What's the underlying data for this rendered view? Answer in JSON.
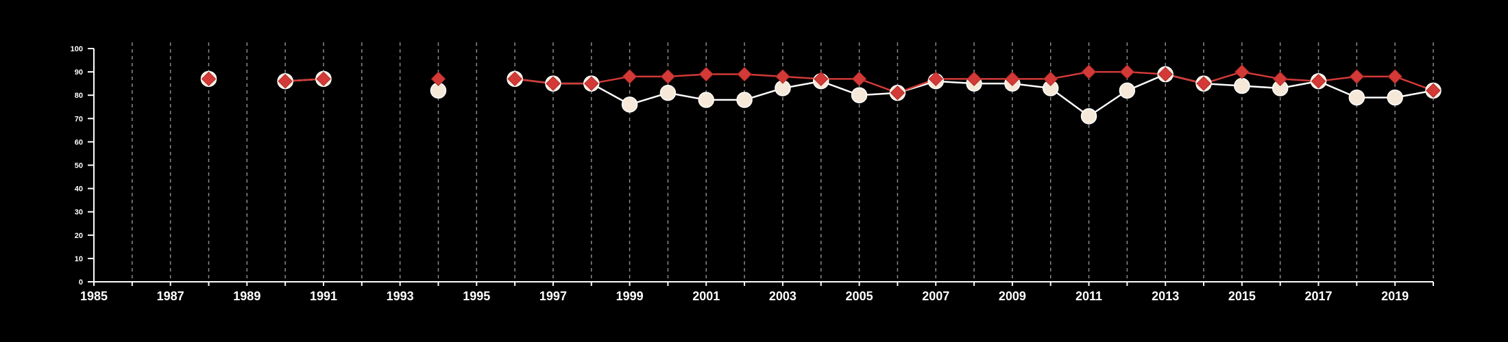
{
  "chart_data": {
    "type": "line",
    "title": "",
    "xlabel": "",
    "ylabel": "",
    "xlim": [
      1985,
      2020
    ],
    "ylim": [
      0,
      100
    ],
    "x_tick_labels": [
      "1985",
      "1987",
      "1989",
      "1991",
      "1993",
      "1995",
      "1997",
      "1999",
      "2001",
      "2003",
      "2005",
      "2007",
      "2009",
      "2011",
      "2013",
      "2015",
      "2017",
      "2019"
    ],
    "y_tick_labels": [
      "0",
      "10",
      "20",
      "30",
      "40",
      "50",
      "60",
      "70",
      "80",
      "90",
      "100"
    ],
    "vertical_dashed_grid": true,
    "background_color": "#000000",
    "series": [
      {
        "marker": "circle",
        "color": "#f6e8d8",
        "line_color": "#ffffff",
        "points": [
          [
            1988,
            87
          ],
          [
            1990,
            86
          ],
          [
            1991,
            87
          ],
          [
            1994,
            82
          ],
          [
            1996,
            87
          ],
          [
            1997,
            85
          ],
          [
            1998,
            85
          ],
          [
            1999,
            76
          ],
          [
            2000,
            81
          ],
          [
            2001,
            78
          ],
          [
            2002,
            78
          ],
          [
            2003,
            83
          ],
          [
            2004,
            86
          ],
          [
            2005,
            80
          ],
          [
            2006,
            81
          ],
          [
            2007,
            86
          ],
          [
            2008,
            85
          ],
          [
            2009,
            85
          ],
          [
            2010,
            83
          ],
          [
            2011,
            71
          ],
          [
            2012,
            82
          ],
          [
            2013,
            89
          ],
          [
            2014,
            85
          ],
          [
            2015,
            84
          ],
          [
            2016,
            83
          ],
          [
            2017,
            86
          ],
          [
            2018,
            79
          ],
          [
            2019,
            79
          ],
          [
            2020,
            82
          ]
        ]
      },
      {
        "marker": "diamond",
        "color": "#d33a37",
        "line_color": "#d33a37",
        "points": [
          [
            1988,
            87
          ],
          [
            1990,
            86
          ],
          [
            1991,
            87
          ],
          [
            1994,
            87
          ],
          [
            1996,
            87
          ],
          [
            1997,
            85
          ],
          [
            1998,
            85
          ],
          [
            1999,
            88
          ],
          [
            2000,
            88
          ],
          [
            2001,
            89
          ],
          [
            2002,
            89
          ],
          [
            2003,
            88
          ],
          [
            2004,
            87
          ],
          [
            2005,
            87
          ],
          [
            2006,
            81
          ],
          [
            2007,
            87
          ],
          [
            2008,
            87
          ],
          [
            2009,
            87
          ],
          [
            2010,
            87
          ],
          [
            2011,
            90
          ],
          [
            2012,
            90
          ],
          [
            2013,
            89
          ],
          [
            2014,
            85
          ],
          [
            2015,
            90
          ],
          [
            2016,
            87
          ],
          [
            2017,
            86
          ],
          [
            2018,
            88
          ],
          [
            2019,
            88
          ],
          [
            2020,
            82
          ]
        ]
      }
    ]
  }
}
